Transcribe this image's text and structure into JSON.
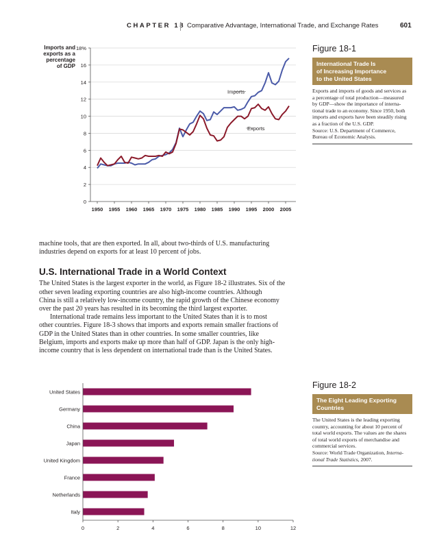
{
  "header": {
    "chapter_label": "CHAPTER 18",
    "chapter_title": "Comparative Advantage, International Trade, and Exchange Rates",
    "page_number": "601"
  },
  "figure1": {
    "number": "Figure 18-1",
    "caption_title": [
      "International Trade Is",
      "of Increasing Importance",
      "to the United States"
    ],
    "caption_lines": [
      "Exports and imports of goods and services as",
      "a percentage of total production—measured",
      "by GDP—show the importance of interna-",
      "tional trade to an economy. Since 1950, both",
      "imports and exports have been steadily rising",
      "as a fraction of the U.S. GDP.",
      "Source: U.S. Department of Commerce,",
      "Bureau of Economic Analysis."
    ]
  },
  "figure2": {
    "number": "Figure 18-2",
    "caption_title": [
      "The Eight Leading Exporting",
      "Countries"
    ],
    "caption_lines": [
      "The United States is the leading exporting",
      "country, accounting for about 10 percent of",
      "total world exports. The values are the shares",
      "of total world exports of merchandise and",
      "commercial services."
    ],
    "source_prefix": "Source: World Trade Organization, ",
    "source_italic_1": "Interna-",
    "source_italic_2": "tional Trade Statistics",
    "source_suffix": ", 2007."
  },
  "body": {
    "intro_lines": [
      "machine tools, that are then exported. In all, about two-thirds of U.S. manufacturing",
      "industries depend on exports for at least 10 percent of jobs."
    ],
    "section_heading": "U.S. International Trade in a World Context",
    "para1_lines": [
      "The United States is the largest exporter in the world, as Figure 18-2 illustrates. Six of the",
      "other seven leading exporting countries are also high-income countries. Although",
      "China is still a relatively low-income country, the rapid growth of the Chinese economy",
      "over the past 20 years has resulted in its becoming the third largest exporter."
    ],
    "para2_lines": [
      "International trade remains less important to the United States than it is to most",
      "other countries. Figure 18-3 shows that imports and exports remain smaller fractions of",
      "GDP in the United States than in other countries. In some smaller countries, like",
      "Belgium, imports and exports make up more than half of GDP. Japan is the only high-",
      "income country that is less dependent on international trade than is the United States."
    ]
  },
  "chart_data": [
    {
      "type": "line",
      "ylabel": [
        "Imports and",
        "exports as a",
        "percentage",
        "of GDP"
      ],
      "xlim": [
        1948,
        2008
      ],
      "ylim": [
        0,
        18
      ],
      "yticks": [
        0,
        2,
        4,
        6,
        8,
        10,
        12,
        14,
        16,
        18
      ],
      "ytick_labels": [
        "0",
        "2",
        "4",
        "6",
        "8",
        "10",
        "12",
        "14",
        "16",
        "18%"
      ],
      "xticks": [
        1950,
        1955,
        1960,
        1965,
        1970,
        1975,
        1980,
        1985,
        1990,
        1995,
        2000,
        2005
      ],
      "colors": {
        "Imports": "#4a5aa8",
        "Exports": "#8b1a2a"
      },
      "series": [
        {
          "name": "Imports",
          "x": [
            1950,
            1951,
            1952,
            1953,
            1954,
            1955,
            1956,
            1957,
            1958,
            1959,
            1960,
            1961,
            1962,
            1963,
            1964,
            1965,
            1966,
            1967,
            1968,
            1969,
            1970,
            1971,
            1972,
            1973,
            1974,
            1975,
            1976,
            1977,
            1978,
            1979,
            1980,
            1981,
            1982,
            1983,
            1984,
            1985,
            1986,
            1987,
            1988,
            1989,
            1990,
            1991,
            1992,
            1993,
            1994,
            1995,
            1996,
            1997,
            1998,
            1999,
            2000,
            2001,
            2002,
            2003,
            2004,
            2005,
            2006
          ],
          "y": [
            3.9,
            4.4,
            4.3,
            4.2,
            4.2,
            4.4,
            4.5,
            4.5,
            4.5,
            4.6,
            4.5,
            4.3,
            4.4,
            4.4,
            4.4,
            4.6,
            4.9,
            5.0,
            5.3,
            5.4,
            5.5,
            5.7,
            6.1,
            6.9,
            8.6,
            7.6,
            8.4,
            9.1,
            9.3,
            10.0,
            10.6,
            10.3,
            9.5,
            9.6,
            10.5,
            10.2,
            10.6,
            11.0,
            11.0,
            11.0,
            11.1,
            10.7,
            10.8,
            11.0,
            11.7,
            12.3,
            12.4,
            12.8,
            13.0,
            13.9,
            15.1,
            13.9,
            13.7,
            14.1,
            15.4,
            16.4,
            16.8
          ]
        },
        {
          "name": "Exports",
          "x": [
            1950,
            1951,
            1952,
            1953,
            1954,
            1955,
            1956,
            1957,
            1958,
            1959,
            1960,
            1961,
            1962,
            1963,
            1964,
            1965,
            1966,
            1967,
            1968,
            1969,
            1970,
            1971,
            1972,
            1973,
            1974,
            1975,
            1976,
            1977,
            1978,
            1979,
            1980,
            1981,
            1982,
            1983,
            1984,
            1985,
            1986,
            1987,
            1988,
            1989,
            1990,
            1991,
            1992,
            1993,
            1994,
            1995,
            1996,
            1997,
            1998,
            1999,
            2000,
            2001,
            2002,
            2003,
            2004,
            2005,
            2006
          ],
          "y": [
            4.2,
            5.1,
            4.6,
            4.2,
            4.3,
            4.4,
            4.9,
            5.3,
            4.6,
            4.5,
            5.2,
            5.1,
            5.0,
            5.1,
            5.4,
            5.3,
            5.3,
            5.3,
            5.4,
            5.3,
            5.8,
            5.6,
            5.8,
            6.8,
            8.5,
            8.4,
            8.1,
            7.8,
            8.2,
            9.1,
            10.1,
            9.7,
            8.6,
            7.8,
            7.7,
            7.1,
            7.2,
            7.6,
            8.7,
            9.2,
            9.6,
            10.0,
            10.0,
            9.7,
            10.0,
            10.9,
            11.0,
            11.4,
            10.9,
            10.7,
            11.1,
            10.3,
            9.7,
            9.6,
            10.2,
            10.6,
            11.2
          ]
        }
      ],
      "annotations": [
        "Imports",
        "Exports"
      ]
    },
    {
      "type": "bar",
      "orientation": "horizontal",
      "categories": [
        "United States",
        "Germany",
        "China",
        "Japan",
        "United Kingdom",
        "France",
        "Netherlands",
        "Italy"
      ],
      "values": [
        9.6,
        8.6,
        7.1,
        5.2,
        4.6,
        4.1,
        3.7,
        3.5
      ],
      "xlim": [
        0,
        12
      ],
      "xticks": [
        0,
        2,
        4,
        6,
        8,
        10,
        12
      ],
      "bar_color": "#8b1556"
    }
  ]
}
